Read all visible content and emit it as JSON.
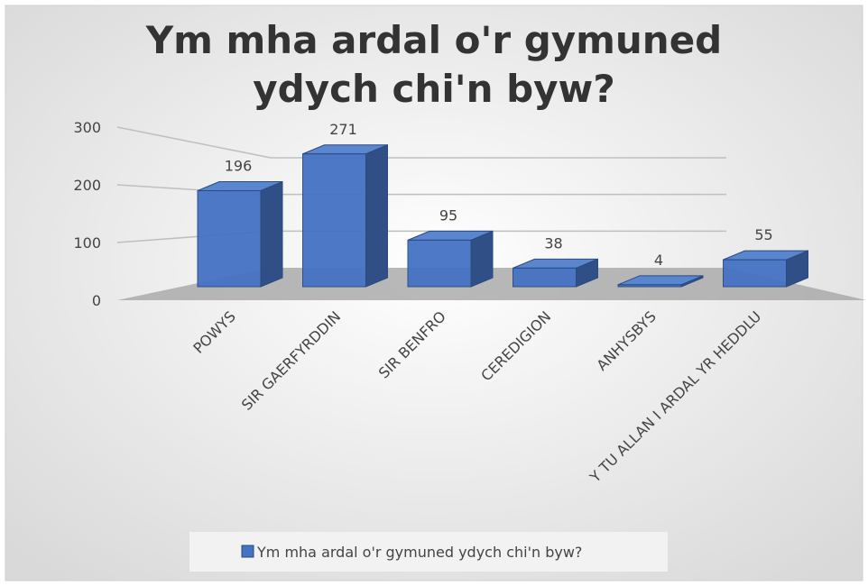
{
  "chart_data": {
    "type": "bar3d",
    "title": "Ym mha ardal o'r gymuned ydych chi'n byw?",
    "categories": [
      "POWYS",
      "SIR GAERFYRDDIN",
      "SIR BENFRO",
      "CEREDIGION",
      "ANHYSBYS",
      "Y TU ALLAN I ARDAL YR HEDDLU"
    ],
    "series": [
      {
        "name": "Ym mha ardal o'r gymuned ydych chi'n byw?",
        "color": "#4472c4",
        "values": [
          196,
          271,
          95,
          38,
          4,
          55
        ]
      }
    ],
    "ylim": [
      0,
      300
    ],
    "yticks": [
      0,
      100,
      200,
      300
    ],
    "grid": true,
    "legend": "bottom"
  }
}
